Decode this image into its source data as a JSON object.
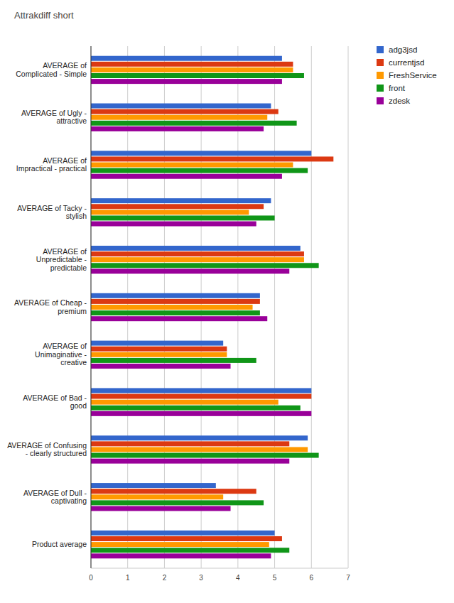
{
  "chart_data": {
    "type": "bar",
    "title": "Attrakdiff short",
    "orientation": "horizontal",
    "categories": [
      "AVERAGE of Complicated - Simple",
      "AVERAGE of Ugly - attractive",
      "AVERAGE of Impractical - practical",
      "AVERAGE of Tacky - stylish",
      "AVERAGE of Unpredictable - predictable",
      "AVERAGE of Cheap - premium",
      "AVERAGE of Unimaginative - creative",
      "AVERAGE of Bad - good",
      "AVERAGE of Confusing - clearly structured",
      "AVERAGE of Dull - captivating",
      "Product average"
    ],
    "series": [
      {
        "name": "adg3jsd",
        "color": "#3366cc",
        "values": [
          5.2,
          4.9,
          6.0,
          4.9,
          5.7,
          4.6,
          3.6,
          6.0,
          5.9,
          3.4,
          5.0
        ]
      },
      {
        "name": "currentjsd",
        "color": "#dc3912",
        "values": [
          5.5,
          5.1,
          6.6,
          4.7,
          5.8,
          4.6,
          3.7,
          6.0,
          5.4,
          4.5,
          5.2
        ]
      },
      {
        "name": "FreshService",
        "color": "#ff9900",
        "values": [
          5.5,
          4.8,
          5.5,
          4.3,
          5.8,
          4.4,
          3.7,
          5.1,
          5.9,
          3.6,
          4.85
        ]
      },
      {
        "name": "front",
        "color": "#109618",
        "values": [
          5.8,
          5.6,
          5.9,
          5.0,
          6.2,
          4.6,
          4.5,
          5.7,
          6.2,
          4.7,
          5.4
        ]
      },
      {
        "name": "zdesk",
        "color": "#990099",
        "values": [
          5.2,
          4.7,
          5.2,
          4.5,
          5.4,
          4.8,
          3.8,
          6.0,
          5.4,
          3.8,
          4.9
        ]
      }
    ],
    "xlim": [
      0,
      7
    ],
    "xticks": [
      0,
      1,
      2,
      3,
      4,
      5,
      6,
      7
    ],
    "grid": true,
    "legend": "right"
  }
}
